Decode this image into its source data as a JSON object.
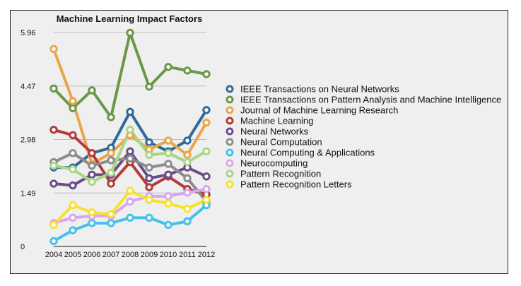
{
  "colors": {
    "background": "#efefef",
    "grid": "#bdbdbd",
    "axis": "#111111"
  },
  "chart_data": {
    "type": "line",
    "title": "Machine Learning Impact Factors",
    "xlabel": "",
    "ylabel": "",
    "ylim": [
      0,
      5.96
    ],
    "yticks": [
      "0",
      "1.49",
      "2.98",
      "4.47",
      "5.96"
    ],
    "ytick_values": [
      0,
      1.49,
      2.98,
      4.47,
      5.96
    ],
    "categories": [
      "2004",
      "2005",
      "2006",
      "2007",
      "2008",
      "2009",
      "2010",
      "2011",
      "2012"
    ],
    "grid": true,
    "legend_position": "right",
    "series": [
      {
        "name": "IEEE Transactions on Neural Networks",
        "color": "#2e6a9b",
        "values": [
          2.2,
          2.2,
          2.6,
          2.75,
          3.75,
          2.9,
          2.65,
          2.95,
          3.8
        ]
      },
      {
        "name": "IEEE Transactions on Pattern Analysis and Machine Intelligence",
        "color": "#6b9748",
        "values": [
          4.4,
          3.85,
          4.35,
          3.6,
          5.95,
          4.45,
          5.0,
          4.9,
          4.8
        ]
      },
      {
        "name": "Journal of Machine Learning Research",
        "color": "#e9a649",
        "values": [
          5.5,
          4.05,
          2.3,
          2.6,
          3.1,
          2.7,
          2.95,
          2.55,
          3.45
        ]
      },
      {
        "name": "Machine Learning",
        "color": "#b23b3b",
        "values": [
          3.25,
          3.1,
          2.6,
          1.75,
          2.35,
          1.65,
          1.95,
          1.6,
          1.45
        ]
      },
      {
        "name": "Neural Networks",
        "color": "#6b4c8b",
        "values": [
          1.75,
          1.7,
          2.0,
          2.0,
          2.65,
          1.9,
          2.0,
          2.2,
          1.95
        ]
      },
      {
        "name": "Neural Computation",
        "color": "#8c8c8c",
        "values": [
          2.35,
          2.6,
          2.25,
          2.4,
          2.45,
          2.2,
          2.3,
          1.9,
          1.25
        ]
      },
      {
        "name": "Neural Computing & Applications",
        "color": "#45c1ea",
        "values": [
          0.15,
          0.45,
          0.65,
          0.65,
          0.8,
          0.8,
          0.6,
          0.7,
          1.15
        ]
      },
      {
        "name": "Neurocomputing",
        "color": "#d9a6ec",
        "values": [
          0.65,
          0.8,
          0.85,
          0.85,
          1.25,
          1.4,
          1.4,
          1.5,
          1.6
        ]
      },
      {
        "name": "Pattern Recognition",
        "color": "#a9d684",
        "values": [
          2.25,
          2.15,
          1.8,
          2.05,
          3.25,
          2.55,
          2.6,
          2.35,
          2.65
        ]
      },
      {
        "name": "Pattern Recognition Letters",
        "color": "#f5e230",
        "values": [
          0.6,
          1.15,
          0.95,
          0.9,
          1.55,
          1.3,
          1.2,
          1.05,
          1.3
        ]
      }
    ]
  }
}
